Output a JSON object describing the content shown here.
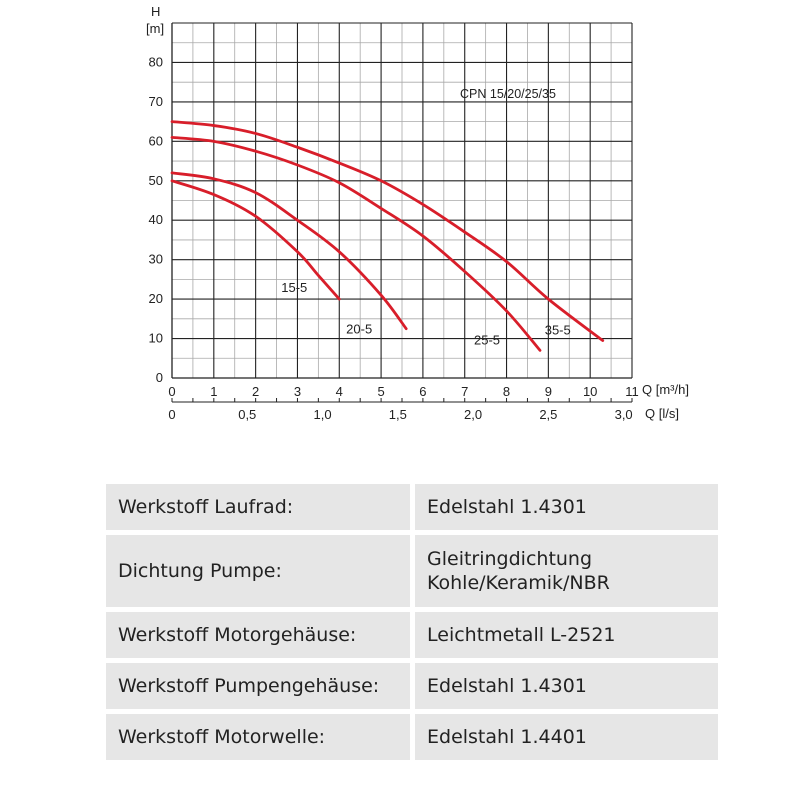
{
  "chart_data": {
    "type": "line",
    "title": "CPN 15/20/25/35",
    "ylabel": [
      "H",
      "[m]"
    ],
    "xlabel": "Q [m³/h]",
    "xlabel2": "Q [l/s]",
    "xlim": [
      0,
      11
    ],
    "ylim": [
      0,
      90
    ],
    "x_ticks": [
      "0",
      "1",
      "2",
      "3",
      "4",
      "5",
      "6",
      "7",
      "8",
      "9",
      "10",
      "11"
    ],
    "y_ticks": [
      "0",
      "10",
      "20",
      "30",
      "40",
      "50",
      "60",
      "70",
      "80"
    ],
    "x2_ticks": [
      {
        "q_m3h": 0,
        "label": "0"
      },
      {
        "q_m3h": 1.8,
        "label": "0,5"
      },
      {
        "q_m3h": 3.6,
        "label": "1,0"
      },
      {
        "q_m3h": 5.4,
        "label": "1,5"
      },
      {
        "q_m3h": 7.2,
        "label": "2,0"
      },
      {
        "q_m3h": 9.0,
        "label": "2,5"
      },
      {
        "q_m3h": 10.8,
        "label": "3,0"
      }
    ],
    "grid": true,
    "line_color": "#d81e2a",
    "series": [
      {
        "name": "15-5",
        "x": [
          0,
          1,
          2,
          3,
          3.5,
          4.0
        ],
        "y": [
          50,
          46.5,
          41,
          32,
          26,
          20
        ]
      },
      {
        "name": "20-5",
        "x": [
          0,
          1,
          2,
          3,
          4,
          5,
          5.6
        ],
        "y": [
          52,
          50.5,
          47,
          40,
          32,
          21,
          12.5
        ]
      },
      {
        "name": "25-5",
        "x": [
          0,
          1,
          2,
          3,
          4,
          5,
          6,
          7,
          8,
          8.8
        ],
        "y": [
          61,
          60,
          57.5,
          54,
          49.5,
          43,
          36,
          27,
          17,
          7
        ]
      },
      {
        "name": "35-5",
        "x": [
          0,
          1,
          2,
          3,
          4,
          5,
          6,
          7,
          8,
          9,
          10.3
        ],
        "y": [
          65,
          64,
          62,
          58.5,
          54.5,
          50,
          44,
          37,
          29.5,
          20,
          9.5
        ]
      }
    ]
  },
  "table": {
    "rows": [
      {
        "key": "Werkstoff Laufrad:",
        "value": [
          "Edelstahl 1.4301"
        ]
      },
      {
        "key": "Dichtung Pumpe:",
        "value": [
          "Gleitringdichtung",
          "Kohle/Keramik/NBR"
        ]
      },
      {
        "key": "Werkstoff Motorgehäuse:",
        "value": [
          "Leichtmetall L-2521"
        ]
      },
      {
        "key": "Werkstoff Pumpengehäuse:",
        "value": [
          "Edelstahl 1.4301"
        ]
      },
      {
        "key": "Werkstoff Motorwelle:",
        "value": [
          "Edelstahl 1.4401"
        ]
      }
    ]
  }
}
